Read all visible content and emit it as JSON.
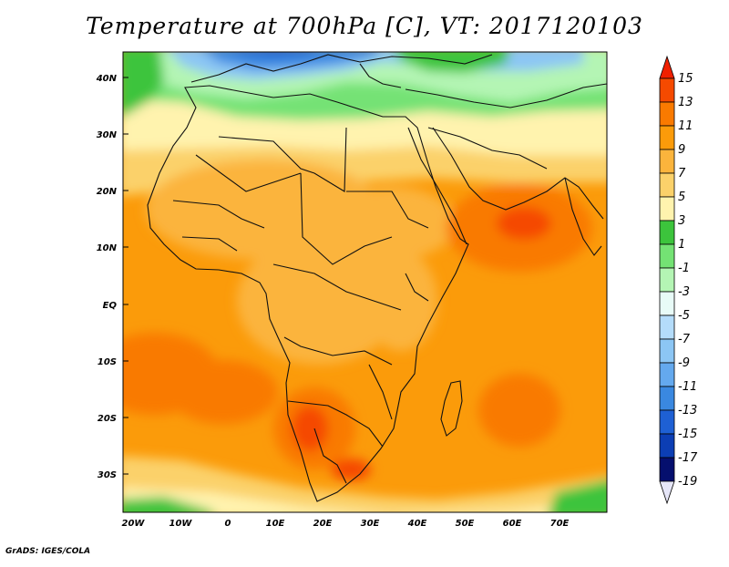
{
  "title": "Temperature at 700hPa [C], VT: 2017120103",
  "footer": "GrADS: IGES/COLA",
  "map": {
    "lat_labels": [
      "40N",
      "30N",
      "20N",
      "10N",
      "EQ",
      "10S",
      "20S",
      "30S"
    ],
    "lon_labels": [
      "20W",
      "10W",
      "0",
      "10E",
      "20E",
      "30E",
      "40E",
      "50E",
      "60E",
      "70E"
    ]
  },
  "colorbar": {
    "labels": [
      "15",
      "13",
      "11",
      "9",
      "7",
      "5",
      "3",
      "1",
      "-1",
      "-3",
      "-5",
      "-7",
      "-9",
      "-11",
      "-13",
      "-15",
      "-17",
      "-19"
    ],
    "colors": [
      "#f02000",
      "#f54a00",
      "#f97a00",
      "#fb9b0a",
      "#fbb43c",
      "#fbd16a",
      "#fff3ae",
      "#3cc43c",
      "#74e274",
      "#b4f5b4",
      "#e8fbf7",
      "#b4dcfa",
      "#8cc6f4",
      "#64a9ee",
      "#3a88e0",
      "#1e60d4",
      "#0c3eb4",
      "#050f6e"
    ]
  }
}
